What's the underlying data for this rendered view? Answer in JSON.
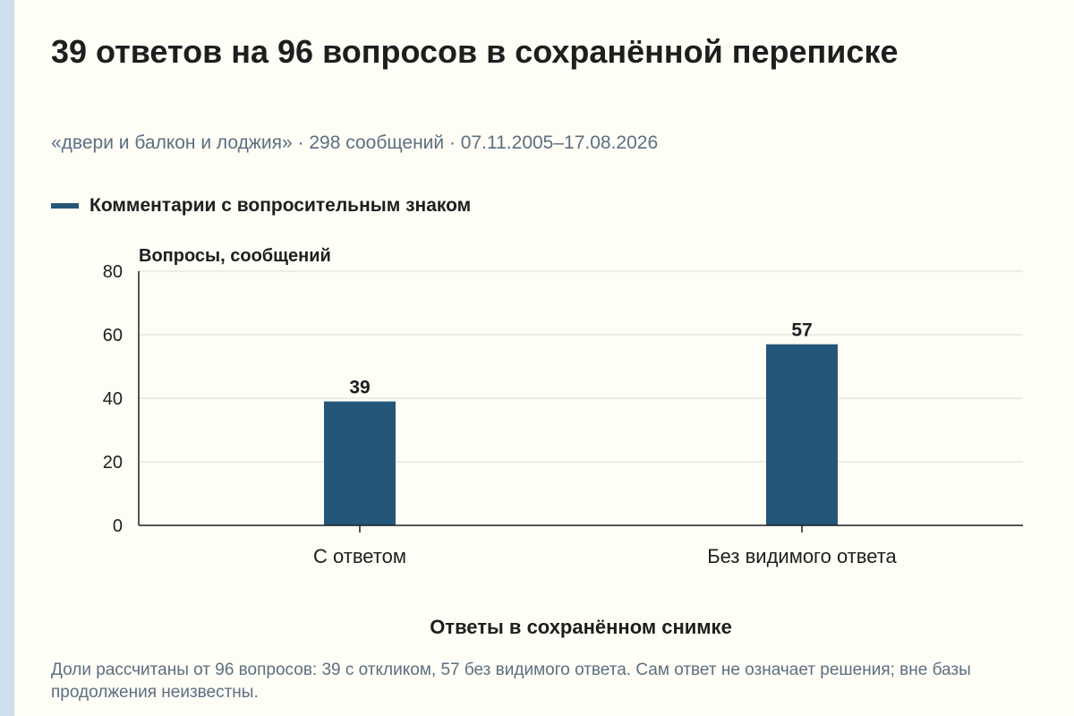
{
  "title": "39 ответов на 96 вопросов в сохранённой переписке",
  "subtitle": "«двери и балкон и лоджия» · 298 сообщений · 07.11.2005–17.08.2026",
  "legend_label": "Комментарии с вопросительным знаком",
  "footnote": "Доли рассчитаны от 96 вопросов: 39 с откликом, 57 без видимого ответа. Сам ответ не означает решения; вне базы продолжения неизвестны.",
  "colors": {
    "bar": "#245679",
    "grid": "#d9d9d2",
    "axis": "#1e1e1e",
    "text": "#1e1e1e",
    "muted": "#5d6f80",
    "background": "#fefdf6"
  },
  "chart_data": {
    "type": "bar",
    "categories": [
      "С ответом",
      "Без видимого ответа"
    ],
    "series": [
      {
        "name": "Комментарии с вопросительным знаком",
        "values": [
          39,
          57
        ]
      }
    ],
    "ylabel": "Вопросы, сообщений",
    "xlabel": "Ответы в сохранённом снимке",
    "ylim": [
      0,
      80
    ],
    "yticks": [
      0,
      20,
      40,
      60,
      80
    ],
    "ytick_labels": [
      "0",
      "20",
      "40",
      "60",
      "80"
    ],
    "data_labels": [
      "39",
      "57"
    ],
    "grid": true,
    "legend_position": "top-left"
  }
}
